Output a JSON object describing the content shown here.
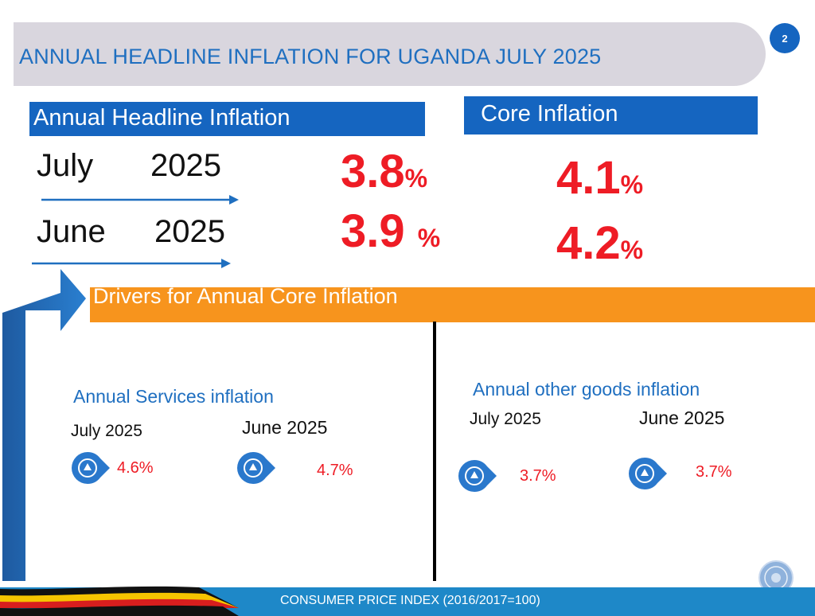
{
  "page": {
    "title": "ANNUAL HEADLINE INFLATION FOR UGANDA JULY 2025",
    "number": "2"
  },
  "headline": {
    "header": "Annual Headline Inflation",
    "rows": [
      {
        "month": "July",
        "year": "2025",
        "value": "3.8",
        "unit": "%"
      },
      {
        "month": "June",
        "year": "2025",
        "value": "3.9",
        "unit": "%"
      }
    ]
  },
  "core": {
    "header": "Core Inflation",
    "values": [
      {
        "value": "4.1",
        "unit": "%"
      },
      {
        "value": "4.2",
        "unit": "%"
      }
    ]
  },
  "drivers": {
    "header": "Drivers for Annual Core Inflation",
    "services": {
      "title": "Annual Services inflation",
      "items": [
        {
          "period": "July  2025",
          "value": "4.6%"
        },
        {
          "period": "June  2025",
          "value": "4.7%"
        }
      ]
    },
    "other_goods": {
      "title": "Annual other goods inflation",
      "items": [
        {
          "period": "July 2025",
          "value": "3.7%"
        },
        {
          "period": "June  2025",
          "value": "3.7%"
        }
      ]
    }
  },
  "footer": {
    "text": "CONSUMER PRICE INDEX (2016/2017=100)"
  },
  "icons": {
    "bullet": "up-arrow-circle-icon",
    "corner_arrow": "bent-arrow-icon",
    "flag": "uganda-flag-ribbon-icon",
    "seal": "seal-logo-icon"
  },
  "colors": {
    "accent_blue": "#1565c0",
    "title_blue": "#1f6fc0",
    "value_red": "#ee1c25",
    "drivers_orange": "#f7941d",
    "footer_blue": "#1e88c8",
    "banner_grey": "#d9d6de"
  }
}
